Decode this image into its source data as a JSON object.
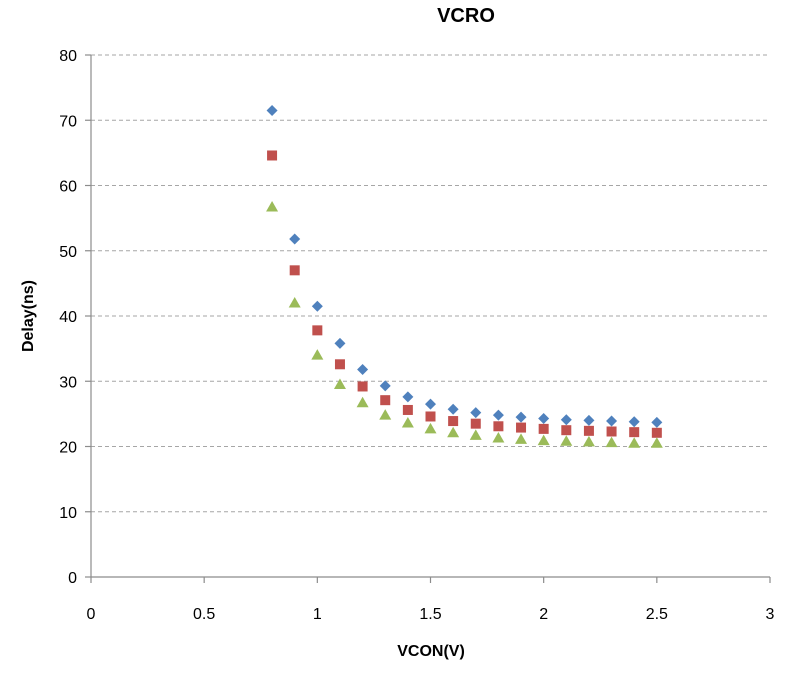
{
  "chart_data": {
    "type": "scatter",
    "title": "VCRO",
    "xlabel": "VCON(V)",
    "ylabel": "Delay(ns)",
    "xlim": [
      0,
      3
    ],
    "ylim": [
      0,
      80
    ],
    "xticks": [
      "0",
      "0.5",
      "1",
      "1.5",
      "2",
      "2.5",
      "3"
    ],
    "yticks": [
      "0",
      "10",
      "20",
      "30",
      "40",
      "50",
      "60",
      "70",
      "80"
    ],
    "grid": "horizontal dashed",
    "legend": "none",
    "x": [
      0.8,
      0.9,
      1.0,
      1.1,
      1.2,
      1.3,
      1.4,
      1.5,
      1.6,
      1.7,
      1.8,
      1.9,
      2.0,
      2.1,
      2.2,
      2.3,
      2.4,
      2.5
    ],
    "series": [
      {
        "marker": "diamond",
        "color": "#4f81bd",
        "values": [
          71.5,
          51.8,
          41.5,
          35.8,
          31.8,
          29.3,
          27.6,
          26.5,
          25.7,
          25.2,
          24.8,
          24.5,
          24.3,
          24.1,
          24.0,
          23.9,
          23.8,
          23.7
        ]
      },
      {
        "marker": "square",
        "color": "#c0504d",
        "values": [
          64.6,
          47.0,
          37.8,
          32.6,
          29.2,
          27.1,
          25.6,
          24.6,
          23.9,
          23.5,
          23.1,
          22.9,
          22.7,
          22.5,
          22.4,
          22.3,
          22.2,
          22.1
        ]
      },
      {
        "marker": "triangle",
        "color": "#9bbb59",
        "values": [
          56.7,
          42.0,
          34.0,
          29.5,
          26.7,
          24.8,
          23.6,
          22.7,
          22.1,
          21.7,
          21.3,
          21.1,
          20.9,
          20.8,
          20.7,
          20.6,
          20.5,
          20.5
        ]
      }
    ]
  }
}
